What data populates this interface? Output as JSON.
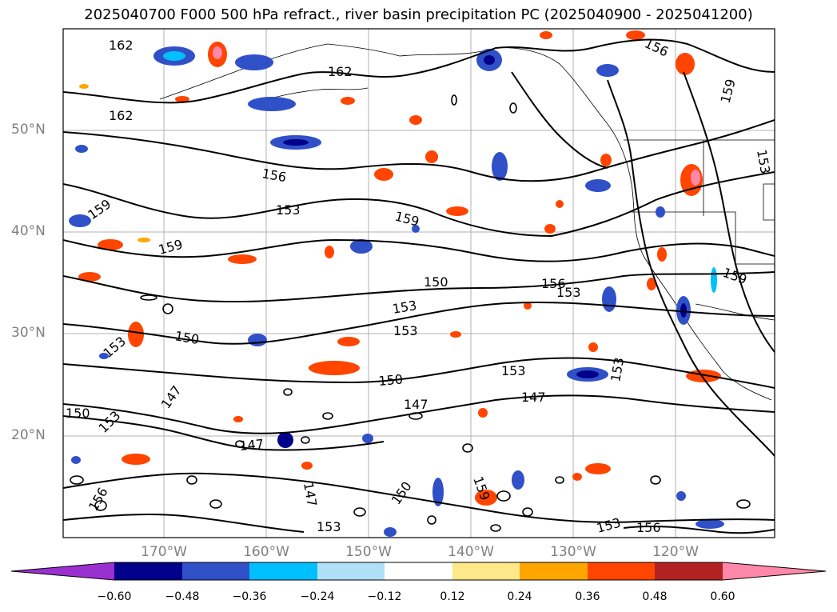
{
  "title": "2025040700 F000 500 hPa refract., river basin precipitation PC (2025040900 - 2025041200)",
  "lat_labels": [
    "50°N",
    "40°N",
    "30°N",
    "20°N"
  ],
  "lon_labels": [
    "170°W",
    "160°W",
    "150°W",
    "140°W",
    "130°W",
    "120°W"
  ],
  "colorbar": {
    "ticks": [
      "−0.60",
      "−0.48",
      "−0.36",
      "−0.24",
      "−0.12",
      "0.12",
      "0.24",
      "0.36",
      "0.48",
      "0.60"
    ],
    "colors": [
      "#9b30d0",
      "#00008b",
      "#3050c8",
      "#00bfff",
      "#b0e0f8",
      "#ffffff",
      "#ffe88a",
      "#ffa500",
      "#ff4500",
      "#b22222",
      "#ff88aa"
    ]
  },
  "contour_labels": [
    "162",
    "162",
    "162",
    "156",
    "159",
    "156",
    "153",
    "159",
    "159",
    "159",
    "150",
    "156",
    "153",
    "153",
    "150",
    "153",
    "153",
    "153",
    "150",
    "153",
    "147",
    "150",
    "147",
    "147",
    "147",
    "153",
    "156",
    "159",
    "153",
    "156",
    "150",
    "159",
    "147",
    "153",
    "153"
  ]
}
